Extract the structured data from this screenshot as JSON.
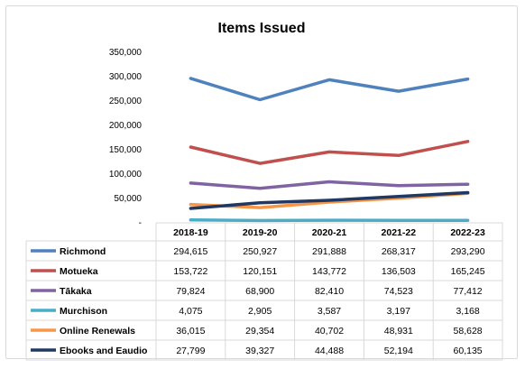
{
  "chart_data": {
    "type": "line",
    "title": "Items Issued",
    "categories": [
      "2018-19",
      "2019-20",
      "2020-21",
      "2021-22",
      "2022-23"
    ],
    "ylim": [
      0,
      350000
    ],
    "yticks": [
      0,
      50000,
      100000,
      150000,
      200000,
      250000,
      300000,
      350000
    ],
    "ytick_labels": [
      "-",
      "50,000",
      "100,000",
      "150,000",
      "200,000",
      "250,000",
      "300,000",
      "350,000"
    ],
    "grid": false,
    "legend": "data-table",
    "series": [
      {
        "name": "Richmond",
        "color": "#4f81bd",
        "values": [
          294615,
          250927,
          291888,
          268317,
          293290
        ],
        "labels": [
          "294,615",
          "250,927",
          "291,888",
          "268,317",
          "293,290"
        ]
      },
      {
        "name": "Motueka",
        "color": "#c0504d",
        "values": [
          153722,
          120151,
          143772,
          136503,
          165245
        ],
        "labels": [
          "153,722",
          "120,151",
          "143,772",
          "136,503",
          "165,245"
        ]
      },
      {
        "name": "Tākaka",
        "color": "#8064a2",
        "values": [
          79824,
          68900,
          82410,
          74523,
          77412
        ],
        "labels": [
          "79,824",
          "68,900",
          "82,410",
          "74,523",
          "77,412"
        ]
      },
      {
        "name": "Murchison",
        "color": "#4bacc6",
        "values": [
          4075,
          2905,
          3587,
          3197,
          3168
        ],
        "labels": [
          "4,075",
          "2,905",
          "3,587",
          "3,197",
          "3,168"
        ]
      },
      {
        "name": "Online Renewals",
        "color": "#f79646",
        "values": [
          36015,
          29354,
          40702,
          48931,
          58628
        ],
        "labels": [
          "36,015",
          "29,354",
          "40,702",
          "48,931",
          "58,628"
        ]
      },
      {
        "name": "Ebooks and Eaudio",
        "color": "#1f3864",
        "values": [
          27799,
          39327,
          44488,
          52194,
          60135
        ],
        "labels": [
          "27,799",
          "39,327",
          "44,488",
          "52,194",
          "60,135"
        ]
      }
    ]
  }
}
